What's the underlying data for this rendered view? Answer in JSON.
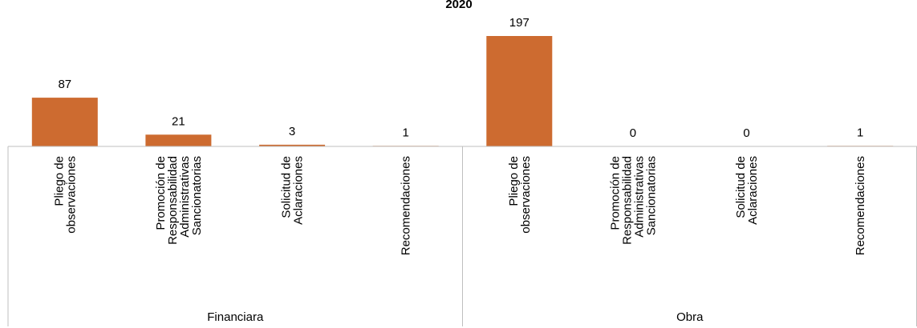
{
  "chart_data": {
    "type": "bar",
    "title": "2020",
    "groups": [
      {
        "label": "Financiara",
        "categories": [
          "Pliego de observaciones",
          "Promoción de Responsabilidad Administrativas Sancionatorias",
          "Solicitud de Aclaraciones",
          "Recomendaciones"
        ]
      },
      {
        "label": "Obra",
        "categories": [
          "Pliego de observaciones",
          "Promoción de Responsabilidad Administrativas Sancionatorias",
          "Solicitud de Aclaraciones",
          "Recomendaciones"
        ]
      }
    ],
    "category_lines": [
      [
        [
          "Pliego de",
          "observaciones"
        ],
        [
          "Promoción de",
          "Responsabilidad",
          "Administrativas",
          "Sancionatorias"
        ],
        [
          "Solicitud de",
          "Aclaraciones"
        ],
        [
          "Recomendaciones"
        ]
      ],
      [
        [
          "Pliego de",
          "observaciones"
        ],
        [
          "Promoción de",
          "Responsabilidad",
          "Administrativas",
          "Sancionatorias"
        ],
        [
          "Solicitud de",
          "Aclaraciones"
        ],
        [
          "Recomendaciones"
        ]
      ]
    ],
    "series": [
      {
        "values": [
          87,
          21,
          3,
          1,
          197,
          0,
          0,
          1
        ]
      }
    ],
    "bar_color": "#CD6B30",
    "data_labels": true,
    "grid": false,
    "legend": "none"
  }
}
